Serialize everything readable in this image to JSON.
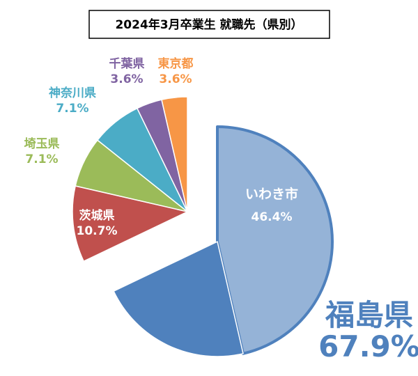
{
  "chart_data": {
    "type": "pie",
    "title": "2024年3月卒業生 就職先（県別）",
    "slices": [
      {
        "label": "いわき市",
        "value": 46.4,
        "value_label": "46.4%",
        "color": "#95b3d7",
        "label_color": "#ffffff",
        "group": "fukushima",
        "border": "#4f81bd"
      },
      {
        "label": "",
        "value": 21.5,
        "value_label": "",
        "color": "#4f81bd",
        "label_color": "#ffffff",
        "group": "fukushima",
        "border": "#ffffff"
      },
      {
        "label": "茨城県",
        "value": 10.7,
        "value_label": "10.7%",
        "color": "#c0504d",
        "label_color": "#ffffff",
        "group": "other",
        "border": "#ffffff"
      },
      {
        "label": "埼玉県",
        "value": 7.1,
        "value_label": "7.1%",
        "color": "#9bbb59",
        "label_color": "#9bbb59",
        "group": "other",
        "border": "#ffffff"
      },
      {
        "label": "神奈川県",
        "value": 7.1,
        "value_label": "7.1%",
        "color": "#4bacc6",
        "label_color": "#4bacc6",
        "group": "other",
        "border": "#ffffff"
      },
      {
        "label": "千葉県",
        "value": 3.6,
        "value_label": "3.6%",
        "color": "#8064a2",
        "label_color": "#8064a2",
        "group": "other",
        "border": "#ffffff"
      },
      {
        "label": "東京都",
        "value": 3.6,
        "value_label": "3.6%",
        "color": "#f79646",
        "label_color": "#f79646",
        "group": "other",
        "border": "#ffffff"
      }
    ],
    "group_annotation": {
      "label": "福島県",
      "value_label": "67.9%",
      "color": "#4f81bd"
    }
  }
}
